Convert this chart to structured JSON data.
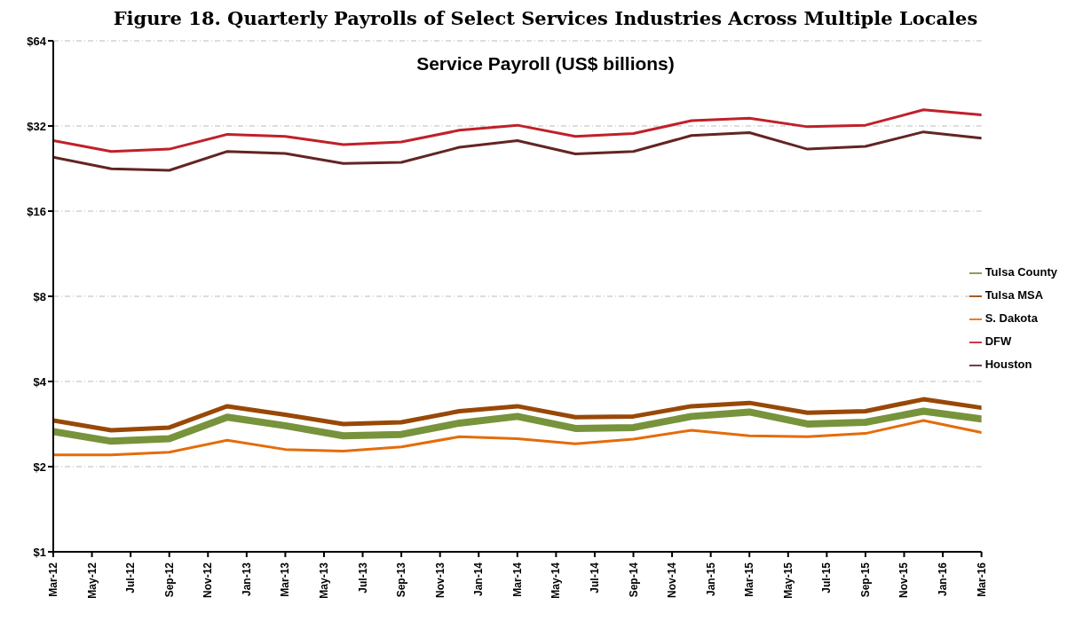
{
  "chart_data": {
    "type": "line",
    "title": "Figure 18. Quarterly Payrolls of Select Services Industries Across Multiple Locales",
    "subtitle": "Service Payroll (US$ billions)",
    "x": [
      "2012-03",
      "2012-06",
      "2012-09",
      "2012-12",
      "2013-03",
      "2013-06",
      "2013-09",
      "2013-12",
      "2014-03",
      "2014-06",
      "2014-09",
      "2014-12",
      "2015-03",
      "2015-06",
      "2015-09",
      "2015-12",
      "2016-03"
    ],
    "series": [
      {
        "name": "Tulsa County",
        "color": "#77933c",
        "values": [
          2.66,
          2.46,
          2.51,
          2.99,
          2.79,
          2.57,
          2.6,
          2.85,
          3.01,
          2.73,
          2.75,
          3.01,
          3.12,
          2.83,
          2.87,
          3.14,
          2.95
        ]
      },
      {
        "name": "Tulsa MSA",
        "color": "#984807",
        "values": [
          2.91,
          2.69,
          2.75,
          3.27,
          3.05,
          2.83,
          2.87,
          3.14,
          3.27,
          2.99,
          3.01,
          3.27,
          3.36,
          3.1,
          3.14,
          3.46,
          3.23
        ]
      },
      {
        "name": "S. Dakota",
        "color": "#e46c0a",
        "values": [
          2.2,
          2.2,
          2.25,
          2.48,
          2.3,
          2.27,
          2.35,
          2.55,
          2.51,
          2.41,
          2.5,
          2.69,
          2.57,
          2.55,
          2.62,
          2.91,
          2.64
        ]
      },
      {
        "name": "DFW",
        "color": "#c0202a",
        "values": [
          28.4,
          26.0,
          26.5,
          29.9,
          29.4,
          27.5,
          28.1,
          30.9,
          32.2,
          29.4,
          30.1,
          33.4,
          34.1,
          31.8,
          32.2,
          36.5,
          35.0
        ]
      },
      {
        "name": "Houston",
        "color": "#632523",
        "values": [
          24.8,
          22.6,
          22.3,
          26.0,
          25.6,
          23.6,
          23.8,
          26.9,
          28.4,
          25.5,
          26.0,
          29.6,
          30.3,
          26.5,
          27.1,
          30.5,
          29.0
        ]
      }
    ],
    "log": "y",
    "ylim": [
      1,
      64
    ],
    "yticks": [
      {
        "value": 1,
        "label": "$1"
      },
      {
        "value": 2,
        "label": "$2"
      },
      {
        "value": 4,
        "label": "$4"
      },
      {
        "value": 8,
        "label": "$8"
      },
      {
        "value": 16,
        "label": "$16"
      },
      {
        "value": 32,
        "label": "$32"
      },
      {
        "value": 64,
        "label": "$64"
      }
    ],
    "xlim": [
      "2012-03",
      "2016-03"
    ],
    "xticks": [
      {
        "value": "2012-03",
        "label": "Mar-12"
      },
      {
        "value": "2012-05",
        "label": "May-12"
      },
      {
        "value": "2012-07",
        "label": "Jul-12"
      },
      {
        "value": "2012-09",
        "label": "Sep-12"
      },
      {
        "value": "2012-11",
        "label": "Nov-12"
      },
      {
        "value": "2013-01",
        "label": "Jan-13"
      },
      {
        "value": "2013-03",
        "label": "Mar-13"
      },
      {
        "value": "2013-05",
        "label": "May-13"
      },
      {
        "value": "2013-07",
        "label": "Jul-13"
      },
      {
        "value": "2013-09",
        "label": "Sep-13"
      },
      {
        "value": "2013-11",
        "label": "Nov-13"
      },
      {
        "value": "2014-01",
        "label": "Jan-14"
      },
      {
        "value": "2014-03",
        "label": "Mar-14"
      },
      {
        "value": "2014-05",
        "label": "May-14"
      },
      {
        "value": "2014-07",
        "label": "Jul-14"
      },
      {
        "value": "2014-09",
        "label": "Sep-14"
      },
      {
        "value": "2014-11",
        "label": "Nov-14"
      },
      {
        "value": "2015-01",
        "label": "Jan-15"
      },
      {
        "value": "2015-03",
        "label": "Mar-15"
      },
      {
        "value": "2015-05",
        "label": "May-15"
      },
      {
        "value": "2015-07",
        "label": "Jul-15"
      },
      {
        "value": "2015-09",
        "label": "Sep-15"
      },
      {
        "value": "2015-11",
        "label": "Nov-15"
      },
      {
        "value": "2016-01",
        "label": "Jan-16"
      },
      {
        "value": "2016-03",
        "label": "Mar-16"
      }
    ],
    "grid": "y",
    "legend": "right",
    "marker": "none",
    "line_style": "solid"
  }
}
